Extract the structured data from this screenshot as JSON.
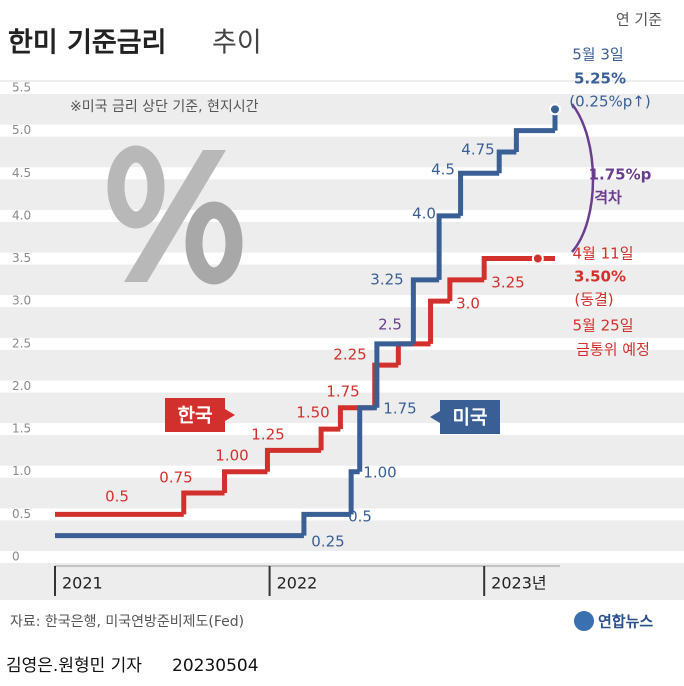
{
  "chart_data": {
    "type": "line",
    "step": true,
    "title": "한미 기준금리",
    "title_light": "추이",
    "unit": "연 기준",
    "note": "※미국 금리 상단 기준, 현지시간",
    "source": "자료: 한국은행, 미국연방준비제도(Fed)",
    "logo": "연합뉴스",
    "byline": "김영은.원형민 기자",
    "date": "20230504",
    "xlim": [
      2021,
      2023.33
    ],
    "xticks": [
      2021,
      2022,
      {
        "value": 2023,
        "label": "2023년"
      }
    ],
    "ylim": [
      0,
      5.5
    ],
    "yticks": [
      0,
      0.5,
      {
        "value": 1,
        "label": "1.0"
      },
      1.5,
      {
        "value": 2,
        "label": "2.0"
      },
      2.5,
      {
        "value": 3,
        "label": "3.0"
      },
      3.5,
      {
        "value": 4,
        "label": "4.0"
      },
      4.5,
      {
        "value": 5,
        "label": "5.0"
      },
      5.5
    ],
    "grid": true,
    "series": [
      {
        "name": "한국",
        "color": "#d2302c",
        "x": [
          2021,
          2021.6,
          2021.79,
          2021.99,
          2022.24,
          2022.33,
          2022.49,
          2022.6,
          2022.75,
          2022.84,
          2023.0,
          2023.25
        ],
        "values": [
          0.5,
          0.75,
          1.0,
          1.25,
          1.5,
          1.75,
          2.25,
          2.5,
          3.0,
          3.25,
          3.5,
          3.5
        ],
        "value_labels": [
          "0.5",
          "0.75",
          "1.00",
          "1.25",
          "1.50",
          "1.75",
          "2.25",
          null,
          "3.0",
          "3.25",
          null,
          null
        ]
      },
      {
        "name": "미국",
        "color": "#3a5f95",
        "x": [
          2021,
          2022.16,
          2022.38,
          2022.42,
          2022.5,
          2022.67,
          2022.79,
          2022.89,
          2023.07,
          2023.15,
          2023.33
        ],
        "values": [
          0.25,
          0.5,
          1.0,
          1.75,
          2.5,
          3.25,
          4.0,
          4.5,
          4.75,
          5.0,
          5.25
        ],
        "value_labels": [
          "0.25",
          "0.5",
          "1.00",
          "1.75",
          null,
          "3.25",
          "4.0",
          "4.5",
          "4.75",
          null,
          null
        ]
      }
    ],
    "annotations": {
      "shared_rate": "2.5",
      "us_date": "5월 3일",
      "us_rate": "5.25%",
      "us_change": "(0.25%p↑)",
      "gap": "1.75%p",
      "gap_label": "격차",
      "kr_date": "4월 11일",
      "kr_rate": "3.50%",
      "kr_status": "(동결)",
      "kr_next": "5월 25일",
      "kr_next_label": "금통위 예정"
    }
  }
}
